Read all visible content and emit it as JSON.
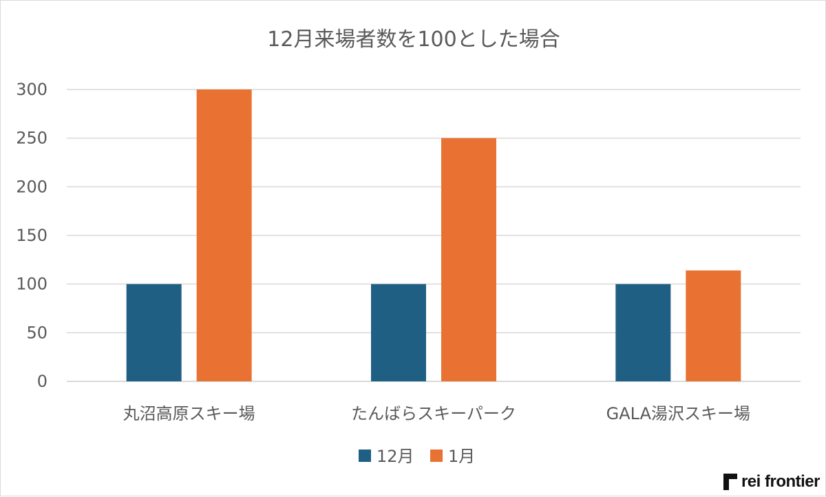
{
  "chart_data": {
    "type": "bar",
    "title": "12月来場者数を100とした場合",
    "categories": [
      "丸沼高原スキー場",
      "たんばらスキーパーク",
      "GALA湯沢スキー場"
    ],
    "series": [
      {
        "name": "12月",
        "values": [
          100,
          100,
          100
        ],
        "color": "#1f5f84"
      },
      {
        "name": "1月",
        "values": [
          300,
          250,
          114
        ],
        "color": "#e97132"
      }
    ],
    "ylim": [
      0,
      300
    ],
    "yticks": [
      0,
      50,
      100,
      150,
      200,
      250,
      300
    ],
    "xlabel": "",
    "ylabel": "",
    "grid": true,
    "legend": "bottom-center"
  },
  "brand": {
    "text": "rei frontier",
    "icon": "rei-frontier-logo-icon"
  }
}
